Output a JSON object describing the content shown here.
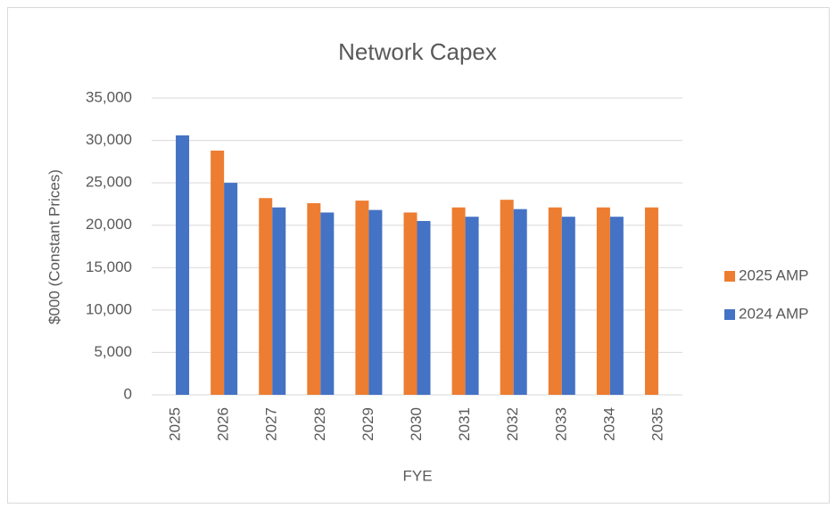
{
  "chart_data": {
    "type": "bar",
    "title": "Network Capex",
    "x_label": "FYE",
    "y_label": "$000 (Constant Prices)",
    "categories": [
      "2025",
      "2026",
      "2027",
      "2028",
      "2029",
      "2030",
      "2031",
      "2032",
      "2033",
      "2034",
      "2035"
    ],
    "series": [
      {
        "name": "2025 AMP",
        "color": "#ed7d31",
        "values": [
          null,
          28800,
          23200,
          22600,
          22900,
          21500,
          22100,
          23000,
          22100,
          22100,
          22100
        ]
      },
      {
        "name": "2024 AMP",
        "color": "#4472c4",
        "values": [
          30600,
          25000,
          22100,
          21500,
          21800,
          20500,
          21000,
          21900,
          21000,
          21000,
          null
        ]
      }
    ],
    "ylim": [
      0,
      35000
    ],
    "yticks": [
      0,
      {
        "value": 5000,
        "label": "5,000"
      },
      {
        "value": 10000,
        "label": "10,000"
      },
      {
        "value": 15000,
        "label": "15,000"
      },
      {
        "value": 20000,
        "label": "20,000"
      },
      {
        "value": 25000,
        "label": "25,000"
      },
      {
        "value": 30000,
        "label": "30,000"
      },
      {
        "value": 35000,
        "label": "35,000"
      }
    ],
    "grid": true,
    "legend": "right"
  }
}
